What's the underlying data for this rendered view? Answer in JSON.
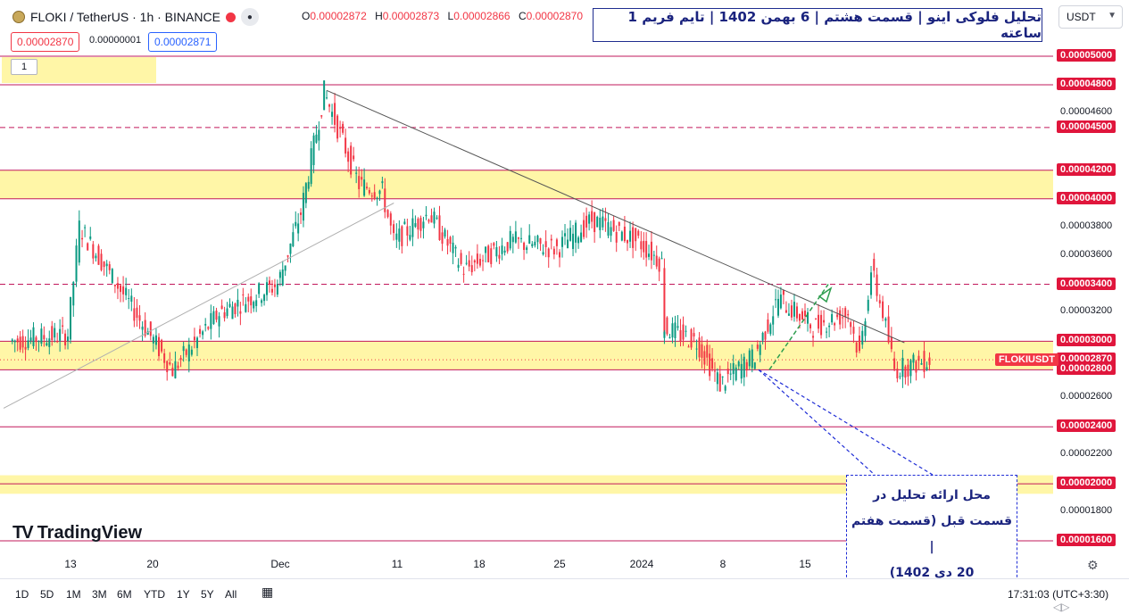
{
  "header": {
    "symbol_title": "FLOKI / TetherUS · 1h · BINANCE",
    "ohlc": {
      "o_label": "O",
      "o_value": "0.00002872",
      "h_label": "H",
      "h_value": "0.00002873",
      "l_label": "L",
      "l_value": "0.00002866",
      "c_label": "C",
      "c_value": "0.00002870"
    },
    "sell_price": "0.00002870",
    "spread": "0.00000001",
    "buy_price": "0.00002871",
    "indicator_count": "1",
    "currency": "USDT"
  },
  "annotation_title": "تحلیل فلوکی اینو | قسمت هشتم | 6 بهمن 1402 | تایم فریم 1 ساعته",
  "annotation_note": [
    "محل ارائه تحلیل در",
    "قسمت قبل (قسمت هفتم |",
    "20 دی 1402)"
  ],
  "colors": {
    "bull": "#089981",
    "bear": "#f23645",
    "zone": "#fff59d",
    "level_line": "#c2185b",
    "tag_bg": "#e0163c",
    "trendline": "#555555",
    "annotation_blue": "#1f2dd6"
  },
  "tv_logo": "TradingView",
  "chart_data": {
    "type": "candlestick",
    "symbol": "FLOKIUSDT",
    "interval": "1h",
    "ylim": [
      1.55e-05,
      5.15e-05
    ],
    "y_axis_labels": [
      "0.00005000",
      "0.00004800",
      "0.00004600",
      "0.00004500",
      "0.00004200",
      "0.00004000",
      "0.00003800",
      "0.00003600",
      "0.00003400",
      "0.00003200",
      "0.00003000",
      "0.00002870",
      "0.00002800",
      "0.00002600",
      "0.00002400",
      "0.00002200",
      "0.00002000",
      "0.00001800",
      "0.00001600"
    ],
    "highlighted_levels": [
      "0.00005000",
      "0.00004800",
      "0.00004500",
      "0.00004200",
      "0.00004000",
      "0.00003400",
      "0.00003000",
      "0.00002870",
      "0.00002800",
      "0.00002400",
      "0.00002000",
      "0.00001600"
    ],
    "x_axis_labels": [
      "13",
      "20",
      "Dec",
      "11",
      "18",
      "25",
      "2024",
      "8",
      "15"
    ],
    "current_price": "0.00002870",
    "current_symbol": "FLOKIUSDT",
    "zones": [
      [
        4e-05,
        4.2e-05
      ],
      [
        2.8e-05,
        3e-05
      ],
      [
        1.93e-05,
        2.06e-05
      ]
    ],
    "solid_levels": [
      5e-05,
      4.8e-05,
      4.2e-05,
      4e-05,
      3e-05,
      2.8e-05,
      2.4e-05,
      2e-05,
      1.6e-05
    ],
    "dashed_levels": [
      4.5e-05,
      3.4e-05
    ],
    "key_points": [
      {
        "date": "Nov 8",
        "price": 3e-05
      },
      {
        "date": "Nov 13",
        "price": 3.05e-05
      },
      {
        "date": "Nov 14",
        "price": 3.8e-05
      },
      {
        "date": "Nov 18",
        "price": 3.3e-05
      },
      {
        "date": "Nov 22",
        "price": 2.8e-05
      },
      {
        "date": "Nov 26",
        "price": 3.2e-05
      },
      {
        "date": "Dec 1",
        "price": 3.4e-05
      },
      {
        "date": "Dec 3",
        "price": 3.9e-05
      },
      {
        "date": "Dec 5",
        "price": 4.75e-05
      },
      {
        "date": "Dec 8",
        "price": 4.1e-05
      },
      {
        "date": "Dec 10",
        "price": 4.05e-05
      },
      {
        "date": "Dec 11",
        "price": 3.7e-05
      },
      {
        "date": "Dec 14",
        "price": 3.9e-05
      },
      {
        "date": "Dec 17",
        "price": 3.5e-05
      },
      {
        "date": "Dec 21",
        "price": 3.7e-05
      },
      {
        "date": "Dec 25",
        "price": 3.65e-05
      },
      {
        "date": "Dec 28",
        "price": 3.85e-05
      },
      {
        "date": "Jan 1",
        "price": 3.7e-05
      },
      {
        "date": "Jan 3",
        "price": 3.55e-05
      },
      {
        "date": "Jan 3",
        "price": 3.1e-05
      },
      {
        "date": "Jan 6",
        "price": 3e-05
      },
      {
        "date": "Jan 8",
        "price": 2.7e-05
      },
      {
        "date": "Jan 11",
        "price": 2.9e-05
      },
      {
        "date": "Jan 13",
        "price": 3.3e-05
      },
      {
        "date": "Jan 16",
        "price": 3.1e-05
      },
      {
        "date": "Jan 19",
        "price": 3.2e-05
      },
      {
        "date": "Jan 20",
        "price": 2.9e-05
      },
      {
        "date": "Jan 21",
        "price": 3.5e-05
      },
      {
        "date": "Jan 22",
        "price": 3.2e-05
      },
      {
        "date": "Jan 23",
        "price": 2.8e-05
      },
      {
        "date": "Jan 26",
        "price": 2.87e-05
      }
    ]
  },
  "bottom": {
    "ranges": [
      "1D",
      "5D",
      "1M",
      "3M",
      "6M",
      "YTD",
      "1Y",
      "5Y",
      "All"
    ],
    "clock": "17:31:03",
    "timezone": "(UTC+3:30)"
  }
}
